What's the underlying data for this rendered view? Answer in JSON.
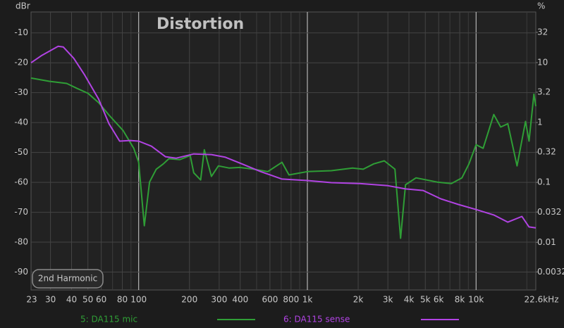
{
  "chart_data": {
    "type": "line",
    "title": "Distortion",
    "y_label": "dBr",
    "y2_label": "%",
    "button": "2nd Harmonic",
    "log_x": true,
    "log_y2": true,
    "grid": true,
    "xlim": [
      23,
      22600
    ],
    "xticks": [
      23,
      30,
      40,
      50,
      60,
      80,
      100,
      200,
      300,
      400,
      600,
      800,
      {
        "value": 1000,
        "label": "1k"
      },
      {
        "value": 2000,
        "label": "2k"
      },
      {
        "value": 3000,
        "label": "3k"
      },
      {
        "value": 4000,
        "label": "4k"
      },
      {
        "value": 5000,
        "label": "5k"
      },
      {
        "value": 6000,
        "label": "6k"
      },
      {
        "value": 8000,
        "label": "8k"
      },
      {
        "value": 10000,
        "label": "10k"
      },
      {
        "value": 22600,
        "label": "22.6kHz"
      }
    ],
    "minor_xticks": [
      70,
      90,
      500,
      700,
      900,
      7000,
      9000,
      20000
    ],
    "ylim": [
      -96,
      -3
    ],
    "yticks": [
      -10,
      -20,
      -30,
      -40,
      -50,
      -60,
      -70,
      -80,
      -90
    ],
    "y2lim": [
      0.0016,
      70
    ],
    "y2ticks": [
      32,
      10,
      3.2,
      1,
      0.32,
      0.1,
      0.032,
      0.01,
      0.0032
    ],
    "series": [
      {
        "name": "5: DA115 mic",
        "color": "#2f9e36",
        "x": [
          23,
          29.5,
          37.4,
          43.2,
          50,
          57.8,
          66.7,
          80.9,
          93.5,
          100,
          108,
          116,
          127,
          140,
          151,
          175,
          202,
          212,
          233,
          245,
          270,
          297,
          343,
          397,
          481,
          583,
          707,
          778,
          1000,
          1387,
          1853,
          2143,
          2473,
          2858,
          3303,
          3568,
          3819,
          4406,
          5888,
          7142,
          8247,
          9078,
          10000,
          11010,
          12740,
          13990,
          15420,
          17490,
          19640,
          20600,
          22030,
          22600
        ],
        "values": [
          -25.1,
          -26.2,
          -26.9,
          -28.6,
          -30.2,
          -33.3,
          -37.5,
          -42.7,
          -48.6,
          -53.3,
          -74.5,
          -59.9,
          -55.6,
          -53.8,
          -52.1,
          -52.4,
          -51,
          -56.8,
          -59.2,
          -49.1,
          -58,
          -54.5,
          -55.2,
          -55,
          -55.6,
          -56.4,
          -53.3,
          -57.5,
          -56.4,
          -56.1,
          -55.2,
          -55.6,
          -53.8,
          -52.8,
          -55.6,
          -78.7,
          -60.8,
          -58.5,
          -59.9,
          -60.4,
          -58.5,
          -53.8,
          -47.4,
          -48.6,
          -37.3,
          -41.5,
          -40.4,
          -54.5,
          -39.6,
          -46.2,
          -30.5,
          -34.5
        ]
      },
      {
        "name": "6: DA115 sense",
        "color": "#b143e3",
        "x": [
          23,
          26.7,
          33.3,
          35.7,
          41.2,
          47.6,
          57.8,
          66.7,
          77.1,
          89.1,
          100,
          119,
          144,
          167,
          212,
          270,
          327,
          416,
          529,
          707,
          1000,
          1387,
          2042,
          3000,
          3819,
          4857,
          6180,
          7856,
          10000,
          12740,
          15420,
          18700,
          20600,
          22600
        ],
        "values": [
          -20,
          -17.5,
          -14.5,
          -14.7,
          -18.5,
          -23.9,
          -32.1,
          -40.4,
          -46.2,
          -46,
          -46.2,
          -47.9,
          -51.4,
          -51.9,
          -50.5,
          -50.7,
          -51.6,
          -54,
          -56.4,
          -58.9,
          -59.4,
          -60.1,
          -60.4,
          -61.1,
          -62.2,
          -62.7,
          -65.5,
          -67.4,
          -69.1,
          -70.9,
          -73.3,
          -71.4,
          -74.9,
          -75.2
        ]
      }
    ]
  }
}
